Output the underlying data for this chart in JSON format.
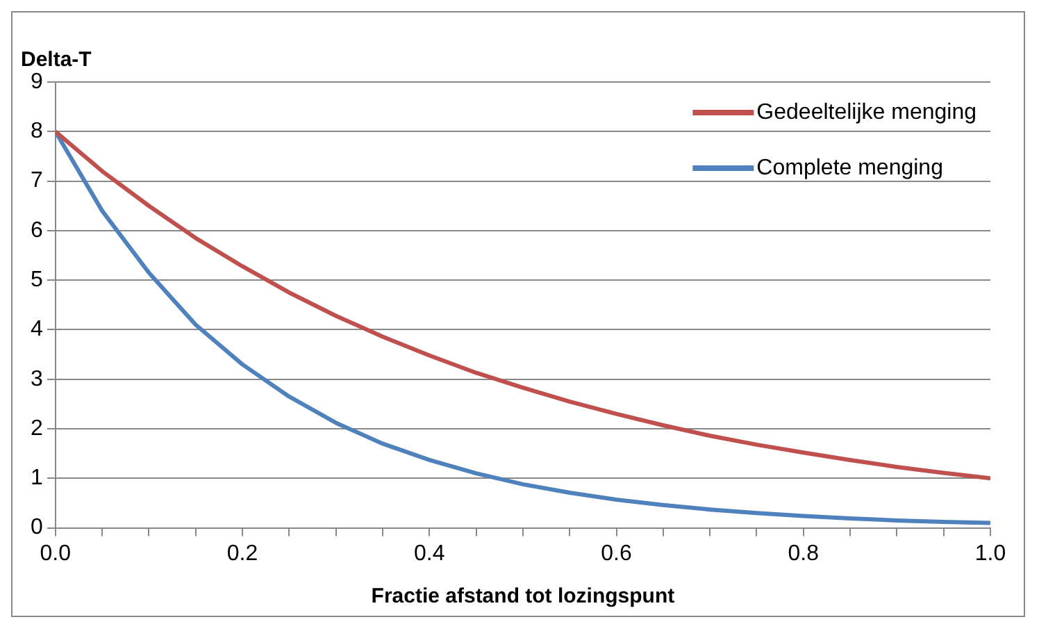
{
  "chart_data": {
    "type": "line",
    "ylabel": "Delta-T",
    "xlabel": "Fractie afstand tot lozingspunt",
    "x": [
      0,
      0.05,
      0.1,
      0.15,
      0.2,
      0.25,
      0.3,
      0.35,
      0.4,
      0.45,
      0.5,
      0.55,
      0.6,
      0.65,
      0.7,
      0.75,
      0.8,
      0.85,
      0.9,
      0.95,
      1.0
    ],
    "series": [
      {
        "name": "Gedeeltelijke menging",
        "color": "#c0504d",
        "values": [
          8.0,
          7.2,
          6.5,
          5.85,
          5.28,
          4.75,
          4.28,
          3.86,
          3.48,
          3.13,
          2.83,
          2.55,
          2.3,
          2.07,
          1.86,
          1.68,
          1.52,
          1.37,
          1.23,
          1.11,
          1.0
        ]
      },
      {
        "name": "Complete menging",
        "color": "#4f81bd",
        "values": [
          8.0,
          6.4,
          5.15,
          4.1,
          3.3,
          2.65,
          2.12,
          1.7,
          1.37,
          1.1,
          0.88,
          0.71,
          0.57,
          0.46,
          0.37,
          0.3,
          0.24,
          0.19,
          0.15,
          0.12,
          0.1
        ]
      }
    ],
    "xlim": [
      0,
      1
    ],
    "ylim": [
      0,
      9
    ],
    "xticks": [
      {
        "value": 0,
        "label": "0.0"
      },
      {
        "value": 0.05,
        "label": null
      },
      {
        "value": 0.1,
        "label": null
      },
      {
        "value": 0.15,
        "label": null
      },
      {
        "value": 0.2,
        "label": "0.2"
      },
      {
        "value": 0.25,
        "label": null
      },
      {
        "value": 0.3,
        "label": null
      },
      {
        "value": 0.35,
        "label": null
      },
      {
        "value": 0.4,
        "label": "0.4"
      },
      {
        "value": 0.45,
        "label": null
      },
      {
        "value": 0.5,
        "label": null
      },
      {
        "value": 0.55,
        "label": null
      },
      {
        "value": 0.6,
        "label": "0.6"
      },
      {
        "value": 0.65,
        "label": null
      },
      {
        "value": 0.7,
        "label": null
      },
      {
        "value": 0.75,
        "label": null
      },
      {
        "value": 0.8,
        "label": "0.8"
      },
      {
        "value": 0.85,
        "label": null
      },
      {
        "value": 0.9,
        "label": null
      },
      {
        "value": 0.95,
        "label": null
      },
      {
        "value": 1.0,
        "label": "1.0"
      }
    ],
    "yticks": [
      0,
      1,
      2,
      3,
      4,
      5,
      6,
      7,
      8,
      9
    ],
    "grid": "y",
    "legend": "top right",
    "marker": "none",
    "line_style": "solid"
  }
}
